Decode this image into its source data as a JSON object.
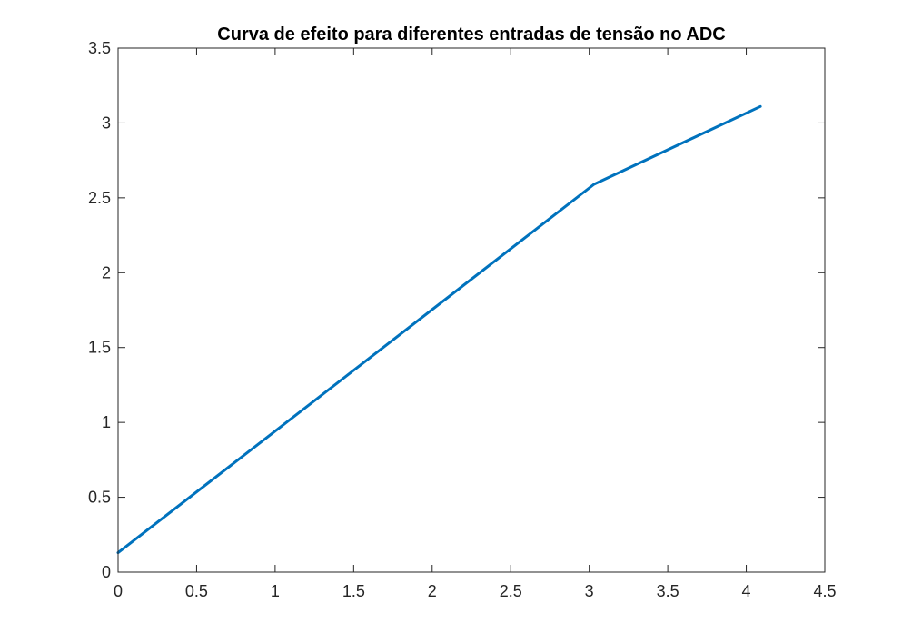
{
  "chart_data": {
    "type": "line",
    "title": "Curva de efeito para diferentes entradas de tensão no ADC",
    "xlabel": "",
    "ylabel": "",
    "xlim": [
      0,
      4.5
    ],
    "ylim": [
      0,
      3.5
    ],
    "x_ticks": [
      "0",
      "0.5",
      "1",
      "1.5",
      "2",
      "2.5",
      "3",
      "3.5",
      "4",
      "4.5"
    ],
    "y_ticks": [
      "0",
      "0.5",
      "1",
      "1.5",
      "2",
      "2.5",
      "3",
      "3.5"
    ],
    "grid": false,
    "legend": "none",
    "series": [
      {
        "color": "#0072BD",
        "x": [
          0,
          3.03,
          4.09
        ],
        "y": [
          0.13,
          2.59,
          3.11
        ]
      }
    ]
  }
}
